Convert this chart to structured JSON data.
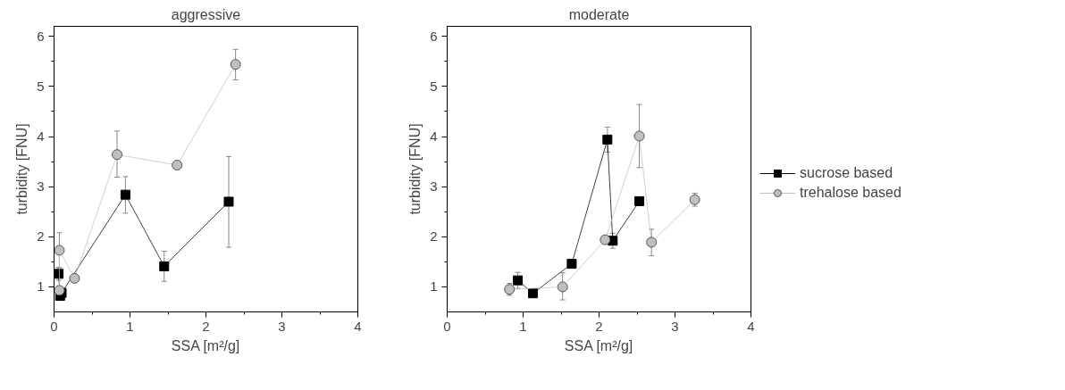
{
  "chart_data": [
    {
      "type": "line",
      "title": "aggressive",
      "xlabel": "SSA [m²/g]",
      "ylabel": "turbidity [FNU]",
      "xlim": [
        0,
        4
      ],
      "ylim": [
        0.5,
        6.2
      ],
      "xticks": [
        0,
        {
          "value": 0.5,
          "label": null
        },
        1,
        {
          "value": 1.5,
          "label": null
        },
        2,
        {
          "value": 2.5,
          "label": null
        },
        3,
        {
          "value": 3.5,
          "label": null
        },
        4
      ],
      "yticks": [
        1,
        {
          "value": 1.5,
          "label": null
        },
        2,
        {
          "value": 2.5,
          "label": null
        },
        3,
        {
          "value": 3.5,
          "label": null
        },
        4,
        {
          "value": 4.5,
          "label": null
        },
        5,
        {
          "value": 5.5,
          "label": null
        },
        6
      ],
      "grid": false,
      "legend": false,
      "series": [
        {
          "color": "#000000",
          "marker": "square",
          "x": [
            0.06,
            0.08,
            0.1,
            0.94,
            1.45,
            2.3
          ],
          "values": [
            1.26,
            0.82,
            0.88,
            2.84,
            1.41,
            2.7
          ],
          "errors": [
            0.13,
            null,
            null,
            [
              2.47,
              3.2
            ],
            0.3,
            [
              1.79,
              3.6
            ]
          ]
        },
        {
          "color": "#bfbfbf",
          "marker": "circle",
          "x": [
            0.07,
            0.07,
            0.27,
            0.83,
            1.62,
            2.39
          ],
          "values": [
            0.93,
            1.73,
            1.17,
            3.64,
            3.43,
            5.44
          ],
          "errors": [
            null,
            0.35,
            0.05,
            [
              3.19,
              4.11
            ],
            null,
            [
              5.13,
              5.74
            ]
          ]
        }
      ]
    },
    {
      "type": "line",
      "title": "moderate",
      "xlabel": "SSA [m²/g]",
      "ylabel": "turbidity [FNU]",
      "xlim": [
        0,
        4
      ],
      "ylim": [
        0.5,
        6.2
      ],
      "xticks": [
        0,
        {
          "value": 0.5,
          "label": null
        },
        1,
        {
          "value": 1.5,
          "label": null
        },
        2,
        {
          "value": 2.5,
          "label": null
        },
        3,
        {
          "value": 3.5,
          "label": null
        },
        4
      ],
      "yticks": [
        1,
        {
          "value": 1.5,
          "label": null
        },
        2,
        {
          "value": 2.5,
          "label": null
        },
        3,
        {
          "value": 3.5,
          "label": null
        },
        4,
        {
          "value": 4.5,
          "label": null
        },
        5,
        {
          "value": 5.5,
          "label": null
        },
        6
      ],
      "grid": false,
      "legend": "right",
      "series": [
        {
          "name": "sucrose based",
          "color": "#000000",
          "marker": "square",
          "x": [
            0.93,
            1.13,
            1.64,
            2.11,
            2.18,
            2.53
          ],
          "values": [
            1.13,
            0.87,
            1.46,
            3.94,
            1.92,
            2.71
          ],
          "errors": [
            0.16,
            null,
            null,
            0.25,
            0.15,
            0.07
          ]
        },
        {
          "name": "trehalose based",
          "color": "#bfbfbf",
          "marker": "circle",
          "x": [
            0.82,
            1.52,
            2.08,
            2.53,
            2.69,
            3.26
          ],
          "values": [
            0.95,
            1.0,
            1.94,
            4.01,
            1.89,
            2.74
          ],
          "errors": [
            0.12,
            [
              0.74,
              1.28
            ],
            0.06,
            [
              3.38,
              4.64
            ],
            [
              1.62,
              2.15
            ],
            0.13
          ]
        }
      ]
    }
  ]
}
